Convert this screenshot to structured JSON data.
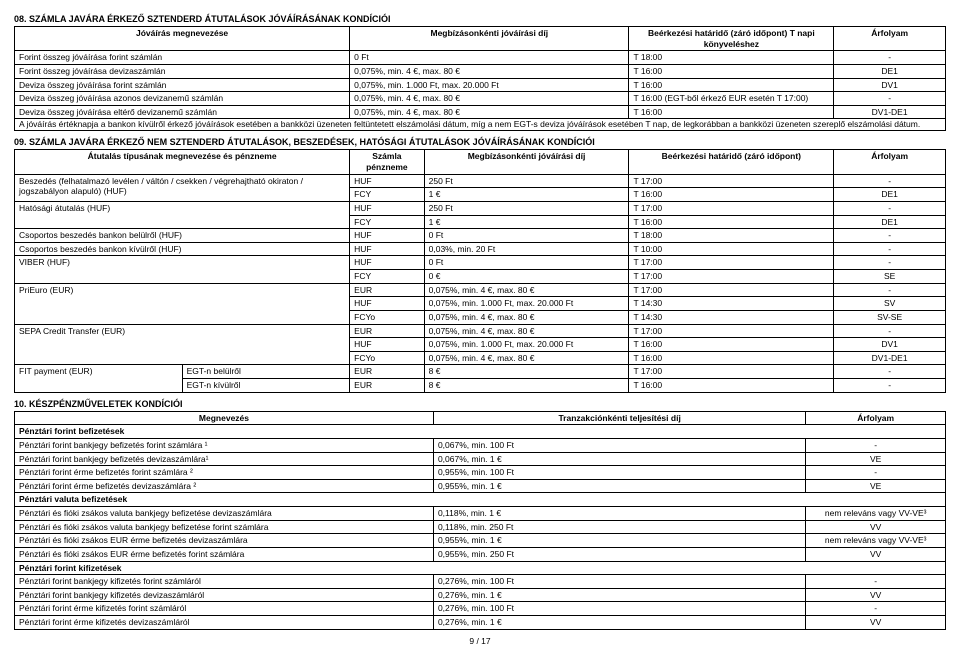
{
  "section08": {
    "title": "08. SZÁMLA JAVÁRA ÉRKEZŐ SZTENDERD ÁTUTALÁSOK JÓVÁÍRÁSÁNAK KONDÍCIÓI",
    "headers": {
      "name": "Jóváírás megnevezése",
      "fee": "Megbízásonkénti jóváírási díj",
      "deadline": "Beérkezési határidő\n(záró időpont)\nT napi könyveléshez",
      "rate": "Árfolyam"
    },
    "rows": [
      {
        "name": "Forint összeg jóváírása forint számlán",
        "fee": "0 Ft",
        "deadline": "T 18:00",
        "rate": "-"
      },
      {
        "name": "Forint összeg jóváírása devizaszámlán",
        "fee": "0,075%, min. 4 €, max. 80 €",
        "deadline": "T 16:00",
        "rate": "DE1"
      },
      {
        "name": "Deviza összeg jóváírása forint számlán",
        "fee": "0,075%, min. 1.000 Ft, max. 20.000 Ft",
        "deadline": "T 16:00",
        "rate": "DV1"
      },
      {
        "name": "Deviza összeg jóváírása azonos devizanemű számlán",
        "fee": "0,075%, min. 4 €, max. 80 €",
        "deadline": "T 16:00 (EGT-ből érkező EUR esetén T 17:00)",
        "rate": "-"
      },
      {
        "name": "Deviza összeg jóváírása eltérő devizanemű számlán",
        "fee": "0,075%, min. 4 €, max. 80 €",
        "deadline": "T 16:00",
        "rate": "DV1-DE1"
      }
    ],
    "note": "A jóváírás értéknapja a bankon kívülről érkező jóváírások esetében a bankközi üzeneten feltüntetett elszámolási dátum, míg a nem EGT-s deviza jóváírások esetében T nap, de legkorábban a bankközi üzeneten szereplő elszámolási dátum."
  },
  "section09": {
    "title": "09. SZÁMLA JAVÁRA ÉRKEZŐ NEM SZTENDERD ÁTUTALÁSOK, BESZEDÉSEK, HATÓSÁGI ÁTUTALÁSOK JÓVÁÍRÁSÁNAK KONDÍCIÓI",
    "headers": {
      "name": "Átutalás típusának megnevezése és pénzneme",
      "curr": "Számla pénzneme",
      "fee": "Megbízásonkénti jóváírási díj",
      "deadline": "Beérkezési határidő\n(záró időpont)",
      "rate": "Árfolyam"
    },
    "groups": [
      {
        "name": "Beszedés (felhatalmazó levélen / váltón / csekken / végrehajtható okiraton / jogszabályon alapuló) (HUF)",
        "rows": [
          {
            "curr": "HUF",
            "fee": "250 Ft",
            "deadline": "T 17:00",
            "rate": "-"
          },
          {
            "curr": "FCY",
            "fee": "1 €",
            "deadline": "T 16:00",
            "rate": "DE1"
          }
        ]
      },
      {
        "name": "Hatósági átutalás (HUF)",
        "rows": [
          {
            "curr": "HUF",
            "fee": "250 Ft",
            "deadline": "T 17:00",
            "rate": "-"
          },
          {
            "curr": "FCY",
            "fee": "1 €",
            "deadline": "T 16:00",
            "rate": "DE1"
          }
        ]
      },
      {
        "name": "Csoportos beszedés bankon belülről (HUF)",
        "rows": [
          {
            "curr": "HUF",
            "fee": "0 Ft",
            "deadline": "T 18:00",
            "rate": "-"
          }
        ]
      },
      {
        "name": "Csoportos beszedés bankon kívülről (HUF)",
        "rows": [
          {
            "curr": "HUF",
            "fee": "0,03%, min. 20 Ft",
            "deadline": "T 10:00",
            "rate": "-"
          }
        ]
      },
      {
        "name": "VIBER (HUF)",
        "rows": [
          {
            "curr": "HUF",
            "fee": "0 Ft",
            "deadline": "T 17:00",
            "rate": "-"
          },
          {
            "curr": "FCY",
            "fee": "0 €",
            "deadline": "T 17:00",
            "rate": "SE"
          }
        ]
      },
      {
        "name": "PriEuro (EUR)",
        "rows": [
          {
            "curr": "EUR",
            "fee": "0,075%, min. 4 €, max. 80 €",
            "deadline": "T 17:00",
            "rate": "-"
          },
          {
            "curr": "HUF",
            "fee": "0,075%, min. 1.000 Ft, max. 20.000 Ft",
            "deadline": "T 14:30",
            "rate": "SV"
          },
          {
            "curr": "FCYo",
            "fee": "0,075%, min. 4 €, max. 80 €",
            "deadline": "T 14:30",
            "rate": "SV-SE"
          }
        ]
      },
      {
        "name": "SEPA Credit Transfer (EUR)",
        "rows": [
          {
            "curr": "EUR",
            "fee": "0,075%, min. 4 €, max. 80 €",
            "deadline": "T 17:00",
            "rate": "-"
          },
          {
            "curr": "HUF",
            "fee": "0,075%, min. 1.000 Ft, max. 20.000 Ft",
            "deadline": "T 16:00",
            "rate": "DV1"
          },
          {
            "curr": "FCYo",
            "fee": "0,075%, min. 4 €, max. 80 €",
            "deadline": "T 16:00",
            "rate": "DV1-DE1"
          }
        ]
      },
      {
        "name": "FIT payment (EUR)",
        "subrows": [
          {
            "sub": "EGT-n belülről",
            "curr": "EUR",
            "fee": "8 €",
            "deadline": "T 17:00",
            "rate": "-"
          },
          {
            "sub": "EGT-n kívülről",
            "curr": "EUR",
            "fee": "8 €",
            "deadline": "T 16:00",
            "rate": "-"
          }
        ]
      }
    ]
  },
  "section10": {
    "title": "10. KÉSZPÉNZMŰVELETEK KONDÍCIÓI",
    "headers": {
      "name": "Megnevezés",
      "fee": "Tranzakciónkénti teljesítési díj",
      "rate": "Árfolyam"
    },
    "groups": [
      {
        "heading": "Pénztári forint befizetések",
        "rows": [
          {
            "name": "Pénztári forint bankjegy befizetés forint számlára ¹",
            "fee": "0,067%, min. 100 Ft",
            "rate": "-"
          },
          {
            "name": "Pénztári forint bankjegy befizetés devizaszámlára¹",
            "fee": "0,067%, min. 1 €",
            "rate": "VE"
          },
          {
            "name": "Pénztári forint érme befizetés forint számlára ²",
            "fee": "0,955%, min. 100 Ft",
            "rate": "-"
          },
          {
            "name": "Pénztári forint érme befizetés devizaszámlára ²",
            "fee": "0,955%, min. 1 €",
            "rate": "VE"
          }
        ]
      },
      {
        "heading": "Pénztári valuta befizetések",
        "rows": [
          {
            "name": "Pénztári és fióki zsákos valuta bankjegy befizetése devizaszámlára",
            "fee": "0,118%, min. 1 €",
            "rate": "nem releváns vagy VV-VE³"
          },
          {
            "name": "Pénztári és fióki zsákos valuta bankjegy befizetése forint számlára",
            "fee": "0,118%, min. 250 Ft",
            "rate": "VV"
          },
          {
            "name": "Pénztári és fióki zsákos EUR érme befizetés devizaszámlára",
            "fee": "0,955%, min. 1 €",
            "rate": "nem releváns vagy VV-VE³"
          },
          {
            "name": "Pénztári és fióki zsákos EUR érme befizetés forint számlára",
            "fee": "0,955%, min. 250 Ft",
            "rate": "VV"
          }
        ]
      },
      {
        "heading": "Pénztári forint kifizetések",
        "rows": [
          {
            "name": "Pénztári forint bankjegy kifizetés forint számláról",
            "fee": "0,276%, min. 100 Ft",
            "rate": "-"
          },
          {
            "name": "Pénztári forint bankjegy kifizetés devizaszámláról",
            "fee": "0,276%, min. 1 €",
            "rate": "VV"
          },
          {
            "name": "Pénztári forint érme kifizetés forint számláról",
            "fee": "0,276%, min. 100 Ft",
            "rate": "-"
          },
          {
            "name": "Pénztári forint érme kifizetés devizaszámláról",
            "fee": "0,276%, min. 1 €",
            "rate": "VV"
          }
        ]
      }
    ]
  },
  "footer": "9 / 17"
}
